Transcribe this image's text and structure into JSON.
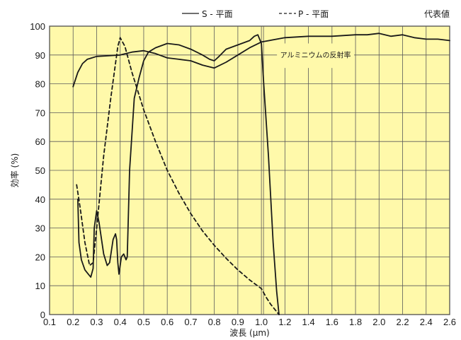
{
  "chart_data": {
    "type": "line",
    "legend": {
      "s_label": "S - 平面",
      "p_label": "P - 平面",
      "note": "代表値"
    },
    "annotation": "アルミニウムの反射率",
    "xlabel": "波長 (μm)",
    "ylabel": "効率 (%)",
    "grid": true,
    "colors": {
      "background": "#FFF9AA",
      "grid": "#5a5a5a",
      "line": "#1a1a1a"
    },
    "x_ticks": [
      "0.1",
      "0.2",
      "0.3",
      "0.4",
      "0.5",
      "0.6",
      "0.7",
      "0.8",
      "0.9",
      "1.0",
      "1.2",
      "1.4",
      "1.6",
      "1.8",
      "2.0",
      "2.2",
      "2.4",
      "2.6"
    ],
    "y_ticks": [
      0,
      10,
      20,
      30,
      40,
      50,
      60,
      70,
      80,
      90,
      100
    ],
    "ylim": [
      0,
      100
    ],
    "series": [
      {
        "name": "S - 平面",
        "style": "solid",
        "curve": "efficiency",
        "points": [
          [
            0.22,
            40
          ],
          [
            0.225,
            25
          ],
          [
            0.235,
            19
          ],
          [
            0.25,
            15.5
          ],
          [
            0.265,
            14
          ],
          [
            0.275,
            13
          ],
          [
            0.285,
            16
          ],
          [
            0.29,
            30
          ],
          [
            0.3,
            36
          ],
          [
            0.31,
            32
          ],
          [
            0.33,
            21
          ],
          [
            0.345,
            17
          ],
          [
            0.355,
            18
          ],
          [
            0.37,
            26
          ],
          [
            0.38,
            28
          ],
          [
            0.385,
            26
          ],
          [
            0.39,
            18
          ],
          [
            0.395,
            14
          ],
          [
            0.405,
            20
          ],
          [
            0.415,
            21
          ],
          [
            0.425,
            19
          ],
          [
            0.43,
            20
          ],
          [
            0.44,
            50
          ],
          [
            0.46,
            75
          ],
          [
            0.48,
            82
          ],
          [
            0.5,
            88
          ],
          [
            0.52,
            91
          ],
          [
            0.55,
            92.5
          ],
          [
            0.6,
            94
          ],
          [
            0.65,
            93.5
          ],
          [
            0.7,
            92
          ],
          [
            0.75,
            90
          ],
          [
            0.78,
            88.5
          ],
          [
            0.8,
            88
          ],
          [
            0.82,
            89.5
          ],
          [
            0.85,
            92
          ],
          [
            0.9,
            93.5
          ],
          [
            0.95,
            95
          ],
          [
            0.97,
            96.5
          ],
          [
            0.985,
            97
          ],
          [
            1.0,
            94
          ],
          [
            1.02,
            80
          ],
          [
            1.06,
            55
          ],
          [
            1.1,
            25
          ],
          [
            1.13,
            8
          ],
          [
            1.15,
            0
          ]
        ]
      },
      {
        "name": "P - 平面",
        "style": "dashed",
        "curve": "efficiency",
        "points": [
          [
            0.215,
            45
          ],
          [
            0.23,
            37
          ],
          [
            0.25,
            25
          ],
          [
            0.27,
            17
          ],
          [
            0.285,
            18
          ],
          [
            0.3,
            30
          ],
          [
            0.33,
            55
          ],
          [
            0.36,
            75
          ],
          [
            0.39,
            93
          ],
          [
            0.4,
            96
          ],
          [
            0.42,
            93
          ],
          [
            0.45,
            84
          ],
          [
            0.5,
            71
          ],
          [
            0.55,
            60
          ],
          [
            0.6,
            50
          ],
          [
            0.65,
            42
          ],
          [
            0.7,
            35
          ],
          [
            0.75,
            29
          ],
          [
            0.8,
            24
          ],
          [
            0.85,
            19.5
          ],
          [
            0.9,
            15.5
          ],
          [
            0.95,
            12
          ],
          [
            1.0,
            9
          ],
          [
            1.04,
            6
          ],
          [
            1.08,
            3.5
          ],
          [
            1.12,
            1.5
          ],
          [
            1.15,
            0
          ]
        ]
      },
      {
        "name": "アルミニウムの反射率",
        "style": "solid",
        "curve": "reflectance",
        "points": [
          [
            0.2,
            79
          ],
          [
            0.22,
            84
          ],
          [
            0.24,
            87
          ],
          [
            0.26,
            88.5
          ],
          [
            0.28,
            89
          ],
          [
            0.3,
            89.5
          ],
          [
            0.4,
            90
          ],
          [
            0.45,
            91
          ],
          [
            0.5,
            91.5
          ],
          [
            0.55,
            90.5
          ],
          [
            0.6,
            89
          ],
          [
            0.65,
            88.5
          ],
          [
            0.7,
            88
          ],
          [
            0.75,
            86.5
          ],
          [
            0.8,
            85.5
          ],
          [
            0.85,
            87.5
          ],
          [
            0.9,
            90
          ],
          [
            0.95,
            92.5
          ],
          [
            1.0,
            94.5
          ],
          [
            1.2,
            96
          ],
          [
            1.4,
            96.5
          ],
          [
            1.6,
            96.5
          ],
          [
            1.8,
            97
          ],
          [
            1.9,
            97
          ],
          [
            2.0,
            97.5
          ],
          [
            2.1,
            96.5
          ],
          [
            2.2,
            97
          ],
          [
            2.3,
            96
          ],
          [
            2.4,
            95.5
          ],
          [
            2.5,
            95.5
          ],
          [
            2.6,
            95
          ]
        ]
      }
    ]
  }
}
